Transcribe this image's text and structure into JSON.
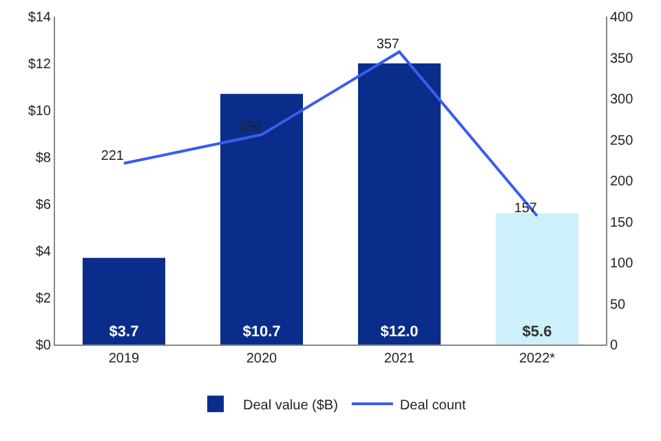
{
  "chart_data": {
    "type": "bar",
    "categories": [
      "2019",
      "2020",
      "2021",
      "2022*"
    ],
    "series": [
      {
        "name": "Deal value ($B)",
        "colors": [
          "#0a2d8c",
          "#0a2d8c",
          "#0a2d8c",
          "#cdf0fb"
        ],
        "values": [
          3.7,
          10.7,
          12.0,
          5.6
        ],
        "value_labels": [
          "$3.7",
          "$10.7",
          "$12.0",
          "$5.6"
        ]
      },
      {
        "name": "Deal count",
        "type": "line",
        "axis": "y2",
        "color": "#3a5cf0",
        "values": [
          221,
          256,
          357,
          157
        ],
        "value_labels": [
          "221",
          "256",
          "357",
          "157"
        ]
      }
    ],
    "ylim": [
      0,
      14
    ],
    "yticks": [
      {
        "value": 0,
        "label": "$0"
      },
      {
        "value": 2,
        "label": "$2"
      },
      {
        "value": 4,
        "label": "$4"
      },
      {
        "value": 6,
        "label": "$6"
      },
      {
        "value": 8,
        "label": "$8"
      },
      {
        "value": 10,
        "label": "$10"
      },
      {
        "value": 12,
        "label": "$12"
      },
      {
        "value": 14,
        "label": "$14"
      }
    ],
    "y2lim": [
      0,
      400
    ],
    "y2ticks": [
      0,
      50,
      100,
      150,
      200,
      250,
      300,
      350,
      400
    ],
    "grid": false,
    "legend": "bottom",
    "marker": "none"
  }
}
